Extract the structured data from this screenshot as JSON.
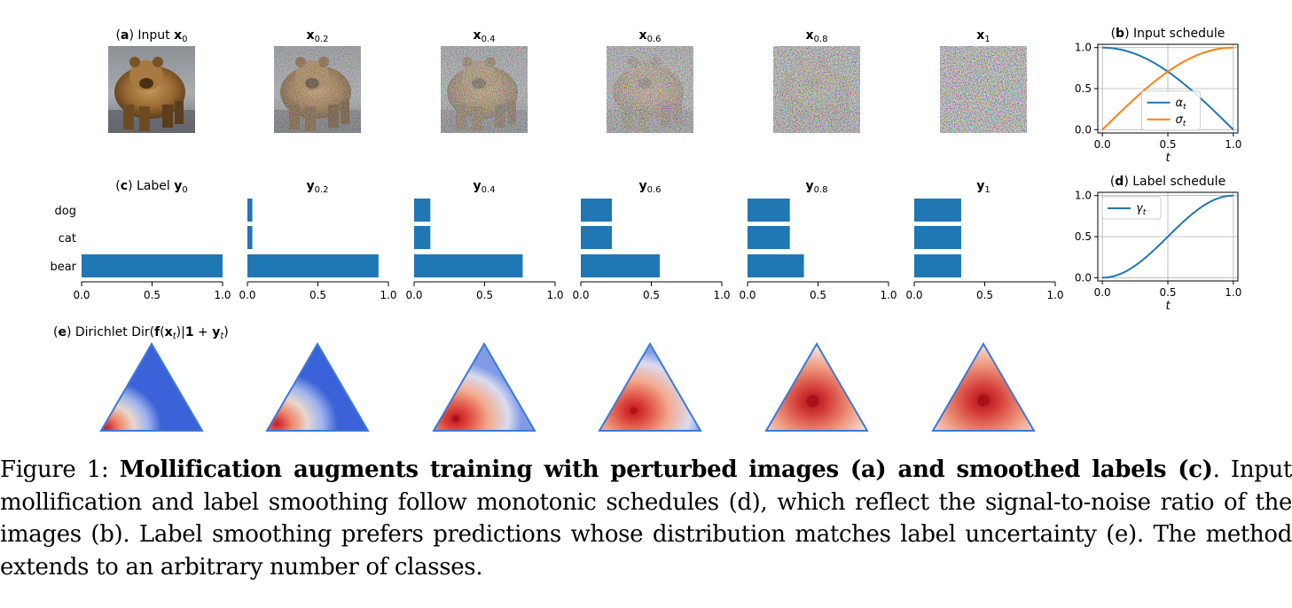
{
  "panels": {
    "a": {
      "letter": "a",
      "label": "Input",
      "columns": [
        {
          "base": "x",
          "sub": "0",
          "t": 0.0
        },
        {
          "base": "x",
          "sub": "0.2",
          "t": 0.2
        },
        {
          "base": "x",
          "sub": "0.4",
          "t": 0.4
        },
        {
          "base": "x",
          "sub": "0.6",
          "t": 0.6
        },
        {
          "base": "x",
          "sub": "0.8",
          "t": 0.8
        },
        {
          "base": "x",
          "sub": "1",
          "t": 1.0
        }
      ]
    },
    "c": {
      "letter": "c",
      "label": "Label",
      "categories": [
        "dog",
        "cat",
        "bear"
      ],
      "xticks": [
        "0.0",
        "0.5",
        "1.0"
      ],
      "columns": [
        {
          "base": "y",
          "sub": "0",
          "values": {
            "dog": 0.0,
            "cat": 0.0,
            "bear": 1.0
          }
        },
        {
          "base": "y",
          "sub": "0.2",
          "values": {
            "dog": 0.035,
            "cat": 0.035,
            "bear": 0.93
          }
        },
        {
          "base": "y",
          "sub": "0.4",
          "values": {
            "dog": 0.115,
            "cat": 0.115,
            "bear": 0.77
          }
        },
        {
          "base": "y",
          "sub": "0.6",
          "values": {
            "dog": 0.22,
            "cat": 0.22,
            "bear": 0.56
          }
        },
        {
          "base": "y",
          "sub": "0.8",
          "values": {
            "dog": 0.3,
            "cat": 0.3,
            "bear": 0.4
          }
        },
        {
          "base": "y",
          "sub": "1",
          "values": {
            "dog": 0.333,
            "cat": 0.333,
            "bear": 0.333
          }
        }
      ],
      "bar_color": "#1f77b4"
    },
    "e": {
      "letter": "e",
      "label_prefix": "Dirichlet Dir(",
      "label_f": "f",
      "label_mid1": "(",
      "label_x": "x",
      "label_t": "t",
      "label_mid2": ")|",
      "label_one": "1",
      "label_plus": " + ",
      "label_y": "y",
      "label_close": ")",
      "count": 6
    }
  },
  "chart_data": [
    {
      "type": "line",
      "panel": "b",
      "title_letter": "b",
      "title": "Input schedule",
      "xlabel": "t",
      "ylabel": "",
      "xlim": [
        0.0,
        1.0
      ],
      "ylim": [
        0.0,
        1.0
      ],
      "xticks": [
        "0.0",
        "0.5",
        "1.0"
      ],
      "yticks": [
        "0.0",
        "0.5",
        "1.0"
      ],
      "grid": true,
      "legend": "center",
      "x": [
        0.0,
        0.1,
        0.2,
        0.3,
        0.4,
        0.5,
        0.6,
        0.7,
        0.8,
        0.9,
        1.0
      ],
      "series": [
        {
          "name": "α",
          "sub": "t",
          "color": "#1f77b4",
          "values": [
            1.0,
            0.988,
            0.951,
            0.891,
            0.809,
            0.707,
            0.588,
            0.454,
            0.309,
            0.156,
            0.0
          ]
        },
        {
          "name": "σ",
          "sub": "t",
          "color": "#ff7f0e",
          "values": [
            0.0,
            0.156,
            0.309,
            0.454,
            0.588,
            0.707,
            0.809,
            0.891,
            0.951,
            0.988,
            1.0
          ]
        }
      ]
    },
    {
      "type": "line",
      "panel": "d",
      "title_letter": "d",
      "title": "Label schedule",
      "xlabel": "t",
      "ylabel": "",
      "xlim": [
        0.0,
        1.0
      ],
      "ylim": [
        0.0,
        1.0
      ],
      "xticks": [
        "0.0",
        "0.5",
        "1.0"
      ],
      "yticks": [
        "0.0",
        "0.5",
        "1.0"
      ],
      "grid": true,
      "legend": "top-left",
      "x": [
        0.0,
        0.1,
        0.2,
        0.3,
        0.4,
        0.5,
        0.6,
        0.7,
        0.8,
        0.9,
        1.0
      ],
      "series": [
        {
          "name": "γ",
          "sub": "t",
          "color": "#1f77b4",
          "values": [
            0.0,
            0.024,
            0.095,
            0.206,
            0.345,
            0.5,
            0.655,
            0.794,
            0.905,
            0.976,
            1.0
          ]
        }
      ]
    }
  ],
  "caption": {
    "prefix": "Figure 1: ",
    "bold": "Mollification augments training with perturbed images (a) and smoothed labels (c)",
    "rest": ". Input mollification and label smoothing follow monotonic schedules (d), which reflect the signal-to-noise ratio of the images (b). Label smoothing prefers predictions whose distribution matches label uncertainty (e). The method extends to an arbitrary number of classes."
  }
}
